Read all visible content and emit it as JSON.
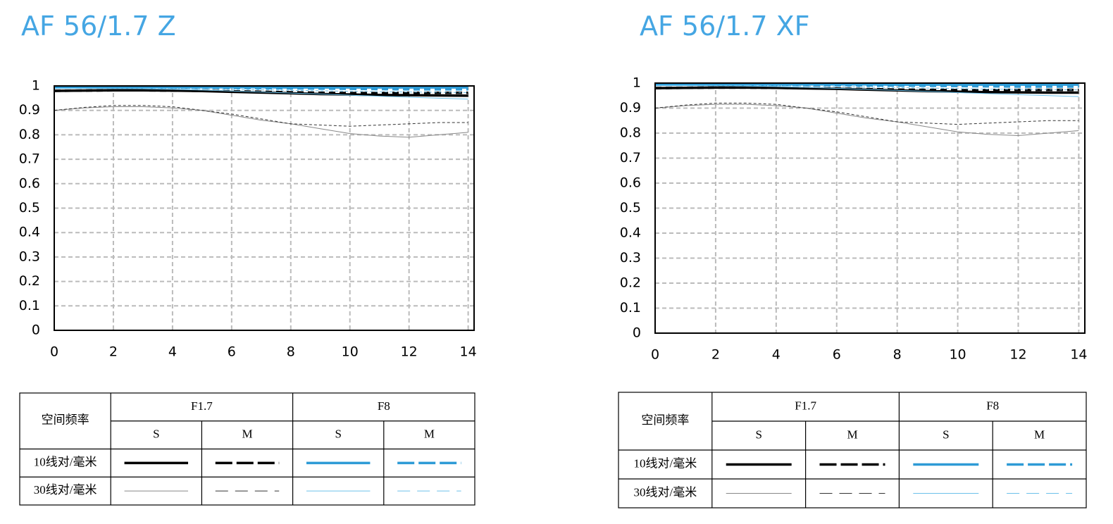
{
  "chart_data": [
    {
      "type": "line",
      "title": "AF 56/1.7 Z",
      "x": [
        0,
        1,
        2,
        3,
        4,
        5,
        6,
        7,
        8,
        9,
        10,
        11,
        12,
        13,
        14
      ],
      "xlim": [
        0,
        14.2
      ],
      "xticks": [
        0,
        2,
        4,
        6,
        8,
        10,
        12,
        14
      ],
      "ylim": [
        0,
        1
      ],
      "yticks": [
        0,
        0.1,
        0.2,
        0.3,
        0.4,
        0.5,
        0.6,
        0.7,
        0.8,
        0.9,
        1
      ],
      "grid": true,
      "series": [
        {
          "color": "#000000",
          "width": 3.5,
          "dash": "none",
          "values": [
            0.98,
            0.981,
            0.982,
            0.982,
            0.981,
            0.979,
            0.976,
            0.973,
            0.97,
            0.967,
            0.965,
            0.963,
            0.962,
            0.961,
            0.96
          ]
        },
        {
          "color": "#000000",
          "width": 3.5,
          "dash": "9 6",
          "values": [
            0.98,
            0.981,
            0.982,
            0.982,
            0.981,
            0.98,
            0.978,
            0.976,
            0.974,
            0.972,
            0.971,
            0.971,
            0.972,
            0.972,
            0.972
          ]
        },
        {
          "color": "#2e9bd6",
          "width": 3.5,
          "dash": "none",
          "values": [
            0.995,
            0.995,
            0.995,
            0.995,
            0.995,
            0.995,
            0.995,
            0.995,
            0.994,
            0.994,
            0.994,
            0.994,
            0.994,
            0.994,
            0.994
          ]
        },
        {
          "color": "#2e9bd6",
          "width": 3.5,
          "dash": "9 6",
          "values": [
            0.993,
            0.993,
            0.993,
            0.993,
            0.993,
            0.992,
            0.992,
            0.991,
            0.99,
            0.989,
            0.988,
            0.987,
            0.986,
            0.986,
            0.986
          ]
        },
        {
          "color": "#888888",
          "width": 1,
          "dash": "none",
          "values": [
            0.9,
            0.91,
            0.915,
            0.915,
            0.91,
            0.9,
            0.88,
            0.86,
            0.845,
            0.825,
            0.805,
            0.795,
            0.79,
            0.8,
            0.81
          ]
        },
        {
          "color": "#333333",
          "width": 1,
          "dash": "4 3",
          "values": [
            0.9,
            0.912,
            0.92,
            0.92,
            0.915,
            0.9,
            0.885,
            0.865,
            0.845,
            0.84,
            0.835,
            0.84,
            0.845,
            0.85,
            0.85
          ]
        },
        {
          "color": "#6cc0ea",
          "width": 1,
          "dash": "none",
          "values": [
            0.99,
            0.99,
            0.989,
            0.988,
            0.986,
            0.983,
            0.979,
            0.975,
            0.971,
            0.967,
            0.962,
            0.958,
            0.954,
            0.95,
            0.946
          ]
        },
        {
          "color": "#6cc0ea",
          "width": 1,
          "dash": "4 3",
          "values": [
            0.99,
            0.99,
            0.99,
            0.99,
            0.989,
            0.988,
            0.986,
            0.984,
            0.982,
            0.98,
            0.978,
            0.976,
            0.975,
            0.974,
            0.973
          ]
        }
      ],
      "legend_table": {
        "corner_header": "空间频率",
        "apertures": [
          "F1.7",
          "F8"
        ],
        "positions": [
          "S",
          "M",
          "S",
          "M"
        ],
        "frequencies": [
          "10线对/毫米",
          "30线对/毫米"
        ]
      }
    },
    {
      "type": "line",
      "title": "AF 56/1.7 XF",
      "x": [
        0,
        1,
        2,
        3,
        4,
        5,
        6,
        7,
        8,
        9,
        10,
        11,
        12,
        13,
        14
      ],
      "xlim": [
        0,
        14.2
      ],
      "xticks": [
        0,
        2,
        4,
        6,
        8,
        10,
        12,
        14
      ],
      "ylim": [
        0,
        1
      ],
      "yticks": [
        0,
        0.1,
        0.2,
        0.3,
        0.4,
        0.5,
        0.6,
        0.7,
        0.8,
        0.9,
        1
      ],
      "grid": true,
      "series": [
        {
          "color": "#000000",
          "width": 3.5,
          "dash": "none",
          "values": [
            0.98,
            0.981,
            0.982,
            0.982,
            0.981,
            0.979,
            0.977,
            0.974,
            0.971,
            0.968,
            0.966,
            0.964,
            0.963,
            0.962,
            0.962
          ]
        },
        {
          "color": "#000000",
          "width": 3.5,
          "dash": "9 6",
          "values": [
            0.98,
            0.981,
            0.982,
            0.982,
            0.981,
            0.98,
            0.978,
            0.976,
            0.974,
            0.973,
            0.972,
            0.972,
            0.973,
            0.973,
            0.973
          ]
        },
        {
          "color": "#2e9bd6",
          "width": 3.5,
          "dash": "none",
          "values": [
            0.995,
            0.995,
            0.995,
            0.995,
            0.995,
            0.995,
            0.995,
            0.995,
            0.994,
            0.994,
            0.994,
            0.994,
            0.994,
            0.994,
            0.994
          ]
        },
        {
          "color": "#2e9bd6",
          "width": 3.5,
          "dash": "9 6",
          "values": [
            0.993,
            0.993,
            0.993,
            0.993,
            0.993,
            0.992,
            0.992,
            0.991,
            0.99,
            0.989,
            0.988,
            0.987,
            0.986,
            0.986,
            0.986
          ]
        },
        {
          "color": "#888888",
          "width": 1,
          "dash": "none",
          "values": [
            0.9,
            0.91,
            0.915,
            0.915,
            0.91,
            0.9,
            0.88,
            0.86,
            0.845,
            0.825,
            0.805,
            0.795,
            0.79,
            0.8,
            0.81
          ]
        },
        {
          "color": "#333333",
          "width": 1,
          "dash": "4 3",
          "values": [
            0.9,
            0.912,
            0.92,
            0.92,
            0.915,
            0.9,
            0.885,
            0.865,
            0.845,
            0.84,
            0.835,
            0.84,
            0.845,
            0.85,
            0.85
          ]
        },
        {
          "color": "#6cc0ea",
          "width": 1,
          "dash": "none",
          "values": [
            0.99,
            0.99,
            0.989,
            0.988,
            0.986,
            0.983,
            0.979,
            0.975,
            0.971,
            0.967,
            0.962,
            0.958,
            0.954,
            0.95,
            0.946
          ]
        },
        {
          "color": "#6cc0ea",
          "width": 1,
          "dash": "4 3",
          "values": [
            0.99,
            0.99,
            0.99,
            0.99,
            0.989,
            0.988,
            0.986,
            0.984,
            0.982,
            0.98,
            0.978,
            0.976,
            0.975,
            0.974,
            0.973
          ]
        }
      ],
      "legend_table": {
        "corner_header": "空间频率",
        "apertures": [
          "F1.7",
          "F8"
        ],
        "positions": [
          "S",
          "M",
          "S",
          "M"
        ],
        "frequencies": [
          "10线对/毫米",
          "30线对/毫米"
        ]
      }
    }
  ]
}
